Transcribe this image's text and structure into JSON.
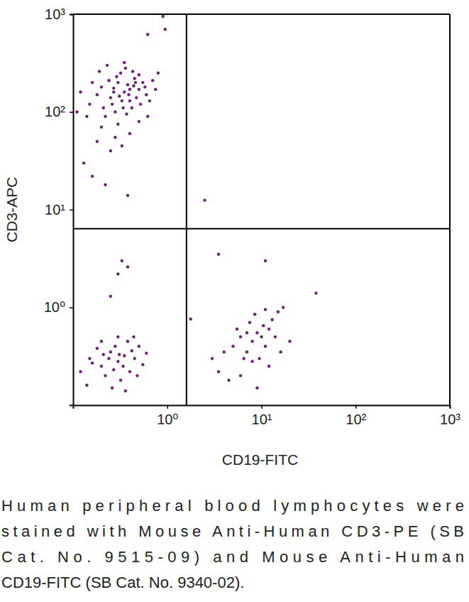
{
  "chart_data": {
    "type": "scatter",
    "log": true,
    "x_label": "CD19-FITC",
    "y_label": "CD3-APC",
    "caption": [
      "Human peripheral blood lymphocytes were",
      "stained with Mouse Anti-Human CD3-PE (SB",
      "Cat. No. 9515-09) and Mouse Anti-Human",
      "CD19-FITC (SB Cat. No. 9340-02)."
    ],
    "color": "#6d2077",
    "marker": "dot",
    "xlim": [
      0.1,
      1000
    ],
    "ylim": [
      0.1,
      1000
    ],
    "xticks": [
      {
        "value": 1,
        "label": "10⁰"
      },
      {
        "value": 10,
        "label": "10¹"
      },
      {
        "value": 100,
        "label": "10²"
      },
      {
        "value": 1000,
        "label": "10³"
      }
    ],
    "yticks": [
      {
        "value": 1,
        "label": "10⁰"
      },
      {
        "value": 10,
        "label": "10¹"
      },
      {
        "value": 100,
        "label": "10²"
      },
      {
        "value": 1000,
        "label": "10³"
      }
    ],
    "quadrant_x": 1.6,
    "quadrant_y": 6.4,
    "x": [
      0.15,
      0.2,
      0.25,
      0.3,
      0.35,
      0.4,
      0.45,
      0.5,
      0.28,
      0.22,
      0.32,
      0.38,
      0.27,
      0.33,
      0.42,
      0.18,
      0.24,
      0.36,
      0.47,
      0.55,
      0.6,
      0.3,
      0.2,
      0.26,
      0.4,
      0.34,
      0.29,
      0.43,
      0.52,
      0.16,
      0.14,
      0.21,
      0.31,
      0.37,
      0.44,
      0.5,
      0.58,
      0.65,
      0.7,
      0.12,
      0.19,
      0.23,
      0.35,
      0.28,
      0.4,
      0.18,
      0.25,
      0.33,
      0.5,
      0.62,
      0.75,
      0.8,
      0.13,
      0.16,
      0.22,
      0.38,
      0.11,
      0.27,
      0.39,
      0.46,
      0.15,
      0.2,
      0.25,
      0.3,
      0.35,
      0.4,
      0.28,
      0.22,
      0.32,
      0.18,
      0.45,
      0.5,
      0.55,
      0.26,
      0.38,
      0.12,
      0.14,
      0.3,
      0.24,
      0.34,
      0.42,
      0.2,
      0.6,
      0.16,
      0.36,
      0.27,
      0.31,
      0.48,
      0.21,
      0.44,
      5,
      6,
      7,
      8,
      9,
      10,
      11,
      12,
      7.5,
      6.5,
      9.5,
      4,
      3.5,
      5.5,
      13,
      15,
      17,
      14,
      8.5,
      10.5,
      12,
      16,
      20,
      4.5,
      6,
      9,
      3,
      7,
      11,
      8,
      0.9,
      0.95,
      0.62,
      2.5,
      3.5,
      11,
      38,
      0.33,
      0.38,
      0.3,
      0.25,
      1.77
    ],
    "values": [
      120,
      180,
      140,
      200,
      160,
      130,
      220,
      170,
      100,
      90,
      250,
      190,
      160,
      130,
      110,
      150,
      210,
      280,
      140,
      200,
      150,
      75,
      70,
      120,
      170,
      110,
      230,
      260,
      120,
      200,
      90,
      110,
      145,
      95,
      185,
      240,
      180,
      130,
      210,
      160,
      260,
      300,
      320,
      55,
      60,
      50,
      40,
      45,
      80,
      90,
      170,
      250,
      30,
      22,
      18,
      14,
      100,
      175,
      150,
      200,
      0.3,
      0.25,
      0.35,
      0.28,
      0.32,
      0.22,
      0.4,
      0.2,
      0.18,
      0.38,
      0.3,
      0.4,
      0.26,
      0.15,
      0.45,
      0.22,
      0.16,
      0.5,
      0.3,
      0.25,
      0.36,
      0.45,
      0.34,
      0.27,
      0.14,
      0.23,
      0.33,
      0.2,
      0.33,
      0.5,
      0.4,
      0.5,
      0.35,
      0.45,
      0.55,
      0.5,
      0.4,
      0.6,
      0.7,
      0.3,
      0.3,
      0.35,
      0.22,
      0.6,
      0.75,
      0.9,
      1.0,
      0.5,
      0.85,
      0.65,
      0.25,
      0.35,
      0.45,
      0.18,
      0.2,
      0.15,
      0.3,
      0.55,
      0.95,
      0.28,
      950,
      700,
      620,
      12.5,
      3.5,
      3,
      1.4,
      3,
      2.6,
      2.2,
      1.3,
      0.76
    ]
  }
}
